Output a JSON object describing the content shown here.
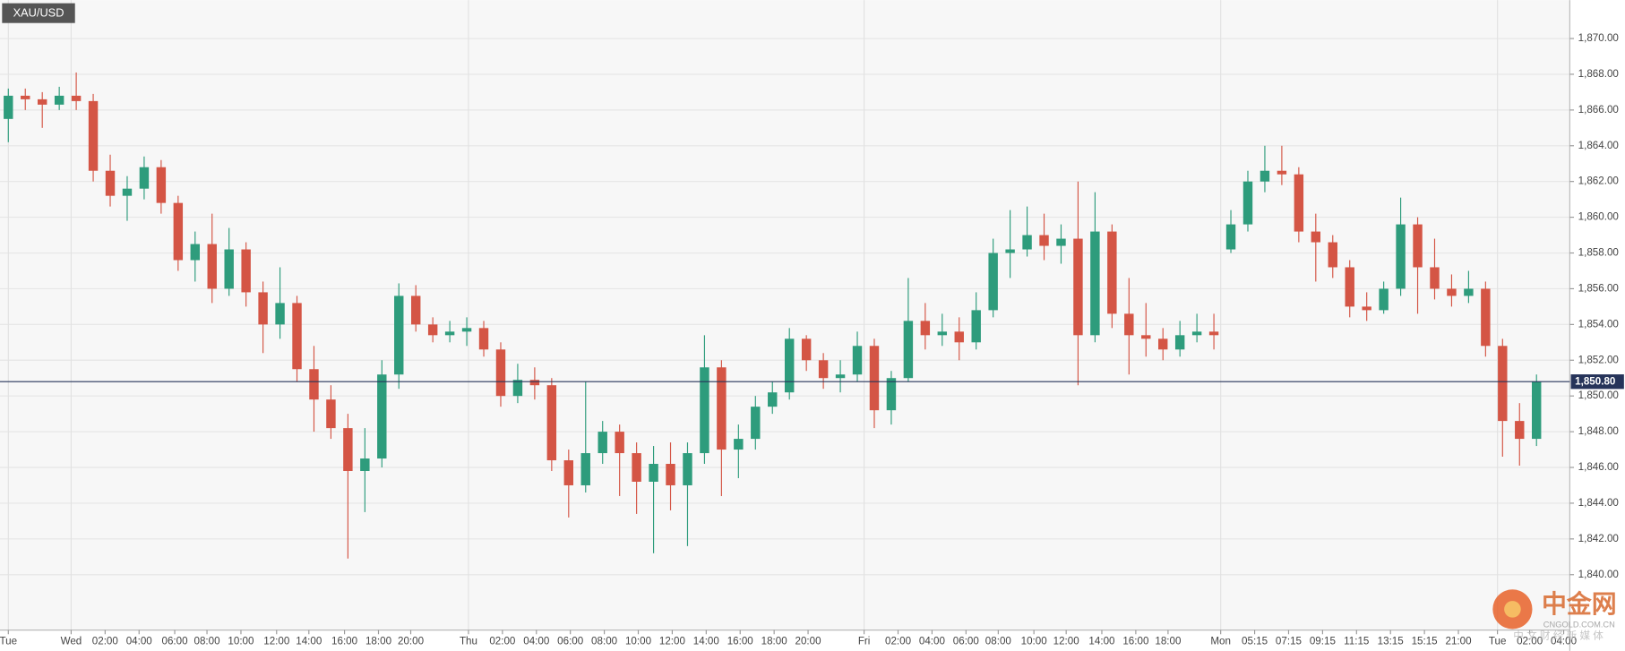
{
  "chart_data": {
    "type": "candlestick",
    "title": "XAU/USD",
    "x": [
      0,
      1,
      2,
      3,
      4,
      5,
      6,
      7,
      8,
      9,
      10,
      11,
      12,
      13,
      14,
      15,
      16,
      17,
      18,
      19,
      20,
      21,
      22,
      23,
      24,
      25,
      26,
      27,
      28,
      29,
      30,
      31,
      32,
      33,
      34,
      35,
      36,
      37,
      38,
      39,
      40,
      41,
      42,
      43,
      44,
      45,
      46,
      47,
      48,
      49,
      50,
      51,
      52,
      53,
      54,
      55,
      56,
      57,
      58,
      59,
      60,
      61,
      62,
      63,
      64,
      65,
      66,
      67,
      68,
      69,
      70,
      71,
      72,
      73,
      74,
      75,
      76,
      77,
      78,
      79,
      80,
      81,
      82,
      83,
      84,
      85,
      86,
      87,
      88,
      89,
      90
    ],
    "series": {
      "open": [
        1865.5,
        1866.8,
        1866.6,
        1866.3,
        1866.8,
        1866.5,
        1862.6,
        1861.2,
        1861.6,
        1862.8,
        1860.8,
        1857.6,
        1858.5,
        1856.0,
        1858.2,
        1855.8,
        1854.0,
        1855.2,
        1851.5,
        1849.8,
        1848.2,
        1845.8,
        1846.5,
        1851.2,
        1855.6,
        1854.0,
        1853.4,
        1853.6,
        1853.8,
        1852.6,
        1850.0,
        1850.9,
        1850.6,
        1846.4,
        1845.0,
        1846.8,
        1848.0,
        1846.8,
        1845.2,
        1846.2,
        1845.0,
        1846.8,
        1851.6,
        1847.0,
        1847.6,
        1849.4,
        1850.2,
        1853.2,
        1852.0,
        1851.0,
        1851.2,
        1852.8,
        1849.2,
        1851.0,
        1854.2,
        1853.4,
        1853.6,
        1853.0,
        1854.8,
        1858.0,
        1858.2,
        1859.0,
        1858.4,
        1858.8,
        1853.4,
        1859.2,
        1854.6,
        1853.4,
        1853.2,
        1852.6,
        1853.4,
        1853.6,
        1858.2,
        1859.6,
        1862.0,
        1862.6,
        1862.4,
        1859.2,
        1858.6,
        1857.2,
        1855.0,
        1854.8,
        1856.0,
        1859.6,
        1857.2,
        1856.0,
        1855.6,
        1856.0,
        1852.8,
        1848.6,
        1847.6
      ],
      "high": [
        1867.2,
        1867.2,
        1867.0,
        1867.3,
        1868.1,
        1866.9,
        1863.5,
        1862.3,
        1863.4,
        1863.2,
        1861.2,
        1859.2,
        1860.2,
        1859.4,
        1858.6,
        1856.4,
        1857.2,
        1855.6,
        1852.8,
        1850.6,
        1849.0,
        1848.2,
        1852.0,
        1856.3,
        1856.2,
        1854.4,
        1854.2,
        1854.4,
        1854.2,
        1853.0,
        1851.8,
        1851.6,
        1851.0,
        1847.0,
        1850.8,
        1848.6,
        1848.4,
        1847.4,
        1847.2,
        1847.4,
        1847.4,
        1853.4,
        1852.0,
        1848.4,
        1850.0,
        1850.8,
        1853.8,
        1853.4,
        1852.4,
        1852.0,
        1853.6,
        1853.2,
        1851.4,
        1856.6,
        1855.2,
        1854.6,
        1854.4,
        1855.8,
        1858.8,
        1860.4,
        1860.6,
        1860.2,
        1859.6,
        1862.0,
        1861.4,
        1859.6,
        1856.6,
        1855.2,
        1853.8,
        1854.2,
        1854.6,
        1854.6,
        1860.4,
        1862.6,
        1864.0,
        1864.0,
        1862.8,
        1860.2,
        1859.0,
        1857.6,
        1855.8,
        1856.4,
        1861.1,
        1860.0,
        1858.8,
        1856.8,
        1857.0,
        1856.4,
        1853.2,
        1849.6,
        1851.2
      ],
      "low": [
        1864.2,
        1866.0,
        1865.0,
        1866.0,
        1866.0,
        1862.0,
        1860.6,
        1859.8,
        1861.0,
        1860.2,
        1857.0,
        1856.4,
        1855.2,
        1855.6,
        1855.0,
        1852.4,
        1853.2,
        1850.8,
        1848.0,
        1847.6,
        1840.9,
        1843.5,
        1846.0,
        1850.4,
        1853.6,
        1853.0,
        1853.0,
        1852.8,
        1852.2,
        1849.4,
        1849.6,
        1849.8,
        1845.8,
        1843.2,
        1844.6,
        1846.2,
        1844.4,
        1843.4,
        1841.2,
        1843.6,
        1841.6,
        1846.2,
        1844.4,
        1845.4,
        1847.0,
        1849.0,
        1849.8,
        1851.4,
        1850.4,
        1850.2,
        1850.8,
        1848.2,
        1848.4,
        1850.8,
        1852.6,
        1852.8,
        1852.0,
        1852.6,
        1854.4,
        1856.6,
        1857.8,
        1857.6,
        1857.4,
        1850.6,
        1853.0,
        1853.8,
        1851.2,
        1852.2,
        1852.0,
        1852.2,
        1853.0,
        1852.6,
        1858.0,
        1859.2,
        1861.4,
        1861.8,
        1858.6,
        1856.4,
        1856.6,
        1854.4,
        1854.2,
        1854.6,
        1855.6,
        1854.6,
        1855.4,
        1855.0,
        1855.2,
        1852.2,
        1846.6,
        1846.1,
        1847.2
      ],
      "close": [
        1866.8,
        1866.6,
        1866.3,
        1866.8,
        1866.5,
        1862.6,
        1861.2,
        1861.6,
        1862.8,
        1860.8,
        1857.6,
        1858.5,
        1856.0,
        1858.2,
        1855.8,
        1854.0,
        1855.2,
        1851.5,
        1849.8,
        1848.2,
        1845.8,
        1846.5,
        1851.2,
        1855.6,
        1854.0,
        1853.4,
        1853.6,
        1853.8,
        1852.6,
        1850.0,
        1850.9,
        1850.6,
        1846.4,
        1845.0,
        1846.8,
        1848.0,
        1846.8,
        1845.2,
        1846.2,
        1845.0,
        1846.8,
        1851.6,
        1847.0,
        1847.6,
        1849.4,
        1850.2,
        1853.2,
        1852.0,
        1851.0,
        1851.2,
        1852.8,
        1849.2,
        1851.0,
        1854.2,
        1853.4,
        1853.6,
        1853.0,
        1854.8,
        1858.0,
        1858.2,
        1859.0,
        1858.4,
        1858.8,
        1853.4,
        1859.2,
        1854.6,
        1853.4,
        1853.2,
        1852.6,
        1853.4,
        1853.6,
        1853.4,
        1859.6,
        1862.0,
        1862.6,
        1862.4,
        1859.2,
        1858.6,
        1857.2,
        1855.0,
        1854.8,
        1856.0,
        1859.6,
        1857.2,
        1856.0,
        1855.6,
        1856.0,
        1852.8,
        1848.6,
        1847.6,
        1850.8
      ]
    },
    "up_color": "#2e9c7c",
    "down_color": "#d45545",
    "last_price": {
      "value": 1850.8,
      "label": "1,850.80"
    },
    "last_price_color": "#26345a",
    "xlim": [
      -0.49,
      91.96
    ],
    "ylim": [
      1836.9,
      1872.15
    ],
    "xticks": [
      {
        "value": 0,
        "label": "Tue"
      },
      {
        "value": 3.7,
        "label": "Wed"
      },
      {
        "value": 5.7,
        "label": "02:00"
      },
      {
        "value": 7.7,
        "label": "04:00"
      },
      {
        "value": 9.8,
        "label": "06:00"
      },
      {
        "value": 11.7,
        "label": "08:00"
      },
      {
        "value": 13.7,
        "label": "10:00"
      },
      {
        "value": 15.8,
        "label": "12:00"
      },
      {
        "value": 17.7,
        "label": "14:00"
      },
      {
        "value": 19.8,
        "label": "16:00"
      },
      {
        "value": 21.8,
        "label": "18:00"
      },
      {
        "value": 23.7,
        "label": "20:00"
      },
      {
        "value": 27.1,
        "label": "Thu"
      },
      {
        "value": 29.1,
        "label": "02:00"
      },
      {
        "value": 31.1,
        "label": "04:00"
      },
      {
        "value": 33.1,
        "label": "06:00"
      },
      {
        "value": 35.1,
        "label": "08:00"
      },
      {
        "value": 37.1,
        "label": "10:00"
      },
      {
        "value": 39.1,
        "label": "12:00"
      },
      {
        "value": 41.1,
        "label": "14:00"
      },
      {
        "value": 43.1,
        "label": "16:00"
      },
      {
        "value": 45.1,
        "label": "18:00"
      },
      {
        "value": 47.1,
        "label": "20:00"
      },
      {
        "value": 50.4,
        "label": "Fri"
      },
      {
        "value": 52.4,
        "label": "02:00"
      },
      {
        "value": 54.4,
        "label": "04:00"
      },
      {
        "value": 56.4,
        "label": "06:00"
      },
      {
        "value": 58.3,
        "label": "08:00"
      },
      {
        "value": 60.4,
        "label": "10:00"
      },
      {
        "value": 62.3,
        "label": "12:00"
      },
      {
        "value": 64.4,
        "label": "14:00"
      },
      {
        "value": 66.4,
        "label": "16:00"
      },
      {
        "value": 68.3,
        "label": "18:00"
      },
      {
        "value": 71.4,
        "label": "Mon"
      },
      {
        "value": 73.4,
        "label": "05:15"
      },
      {
        "value": 75.4,
        "label": "07:15"
      },
      {
        "value": 77.4,
        "label": "09:15"
      },
      {
        "value": 79.4,
        "label": "11:15"
      },
      {
        "value": 81.4,
        "label": "13:15"
      },
      {
        "value": 83.4,
        "label": "15:15"
      },
      {
        "value": 85.4,
        "label": "21:00"
      },
      {
        "value": 87.7,
        "label": "Tue"
      },
      {
        "value": 89.6,
        "label": "02:00"
      },
      {
        "value": 91.6,
        "label": "04:00"
      }
    ],
    "yticks": [
      {
        "value": 1840,
        "label": "1,840.00"
      },
      {
        "value": 1842,
        "label": "1,842.00"
      },
      {
        "value": 1844,
        "label": "1,844.00"
      },
      {
        "value": 1846,
        "label": "1,846.00"
      },
      {
        "value": 1848,
        "label": "1,848.00"
      },
      {
        "value": 1850,
        "label": "1,850.00"
      },
      {
        "value": 1852,
        "label": "1,852.00"
      },
      {
        "value": 1854,
        "label": "1,854.00"
      },
      {
        "value": 1856,
        "label": "1,856.00"
      },
      {
        "value": 1858,
        "label": "1,858.00"
      },
      {
        "value": 1860,
        "label": "1,860.00"
      },
      {
        "value": 1862,
        "label": "1,862.00"
      },
      {
        "value": 1864,
        "label": "1,864.00"
      },
      {
        "value": 1866,
        "label": "1,866.00"
      },
      {
        "value": 1868,
        "label": "1,868.00"
      },
      {
        "value": 1870,
        "label": "1,870.00"
      }
    ],
    "grid": true,
    "watermark": {
      "name": "中金网",
      "domain": "CNGOLD.COM.CN",
      "tagline": "中 文 财 经 新 媒 体"
    }
  }
}
